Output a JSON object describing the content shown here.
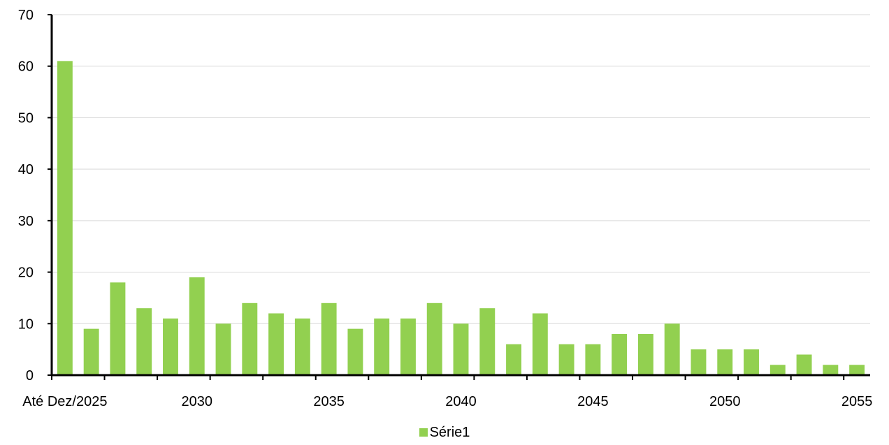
{
  "chart_data": {
    "type": "bar",
    "categories": [
      "Até Dez/2025",
      "2026",
      "2027",
      "2028",
      "2029",
      "2030",
      "2031",
      "2032",
      "2033",
      "2034",
      "2035",
      "2036",
      "2037",
      "2038",
      "2039",
      "2040",
      "2041",
      "2042",
      "2043",
      "2044",
      "2045",
      "2046",
      "2047",
      "2048",
      "2049",
      "2050",
      "2051",
      "2052",
      "2053",
      "2054",
      "2055"
    ],
    "x_tick_labels": [
      "Até Dez/2025",
      "2030",
      "2035",
      "2040",
      "2045",
      "2050",
      "2055"
    ],
    "y_tick_labels": [
      "0",
      "10",
      "20",
      "30",
      "40",
      "50",
      "60",
      "70"
    ],
    "series": [
      {
        "name": "Série1",
        "color": "#92d050",
        "values": [
          61,
          9,
          18,
          13,
          11,
          19,
          10,
          14,
          12,
          11,
          14,
          9,
          11,
          11,
          14,
          10,
          13,
          6,
          12,
          6,
          6,
          8,
          8,
          10,
          5,
          5,
          5,
          2,
          4,
          2,
          2
        ]
      }
    ],
    "ylim": [
      0,
      70
    ],
    "grid": true,
    "legend_position": "bottom-center"
  }
}
